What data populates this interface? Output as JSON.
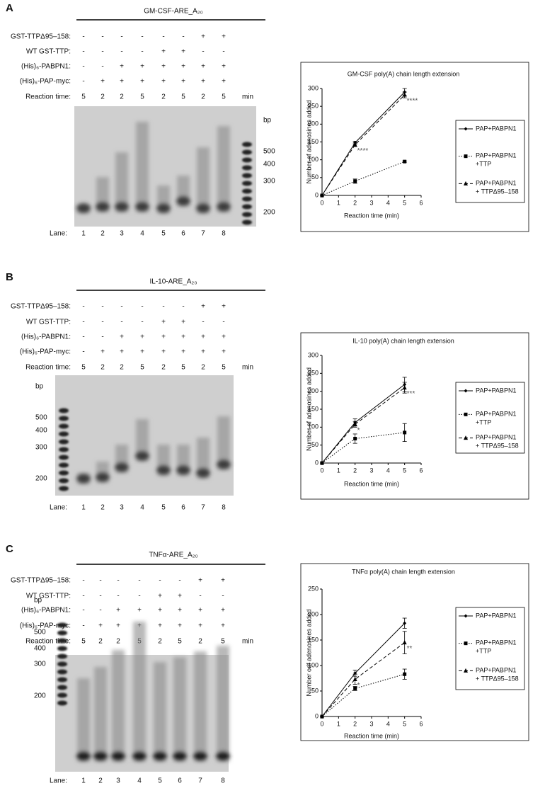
{
  "panels": [
    {
      "label": "A",
      "construct": "GM-CSF-ARE_A₂₀",
      "rows": [
        {
          "name": "GST-TTPΔ95–158:",
          "cells": [
            "-",
            "-",
            "-",
            "-",
            "-",
            "-",
            "+",
            "+"
          ]
        },
        {
          "name": "WT GST-TTP:",
          "cells": [
            "-",
            "-",
            "-",
            "-",
            "+",
            "+",
            "-",
            "-"
          ]
        },
        {
          "name": "(His)₆-PABPN1:",
          "cells": [
            "-",
            "-",
            "+",
            "+",
            "+",
            "+",
            "+",
            "+"
          ]
        },
        {
          "name": "(His)₆-PAP-myc:",
          "cells": [
            "-",
            "+",
            "+",
            "+",
            "+",
            "+",
            "+",
            "+"
          ]
        }
      ],
      "time_label": "Reaction time:",
      "times": [
        5,
        2,
        2,
        5,
        2,
        5,
        2,
        5
      ],
      "time_unit": "min",
      "bp_label": "bp",
      "markers": [
        500,
        400,
        300,
        200
      ],
      "lane_label": "Lane:",
      "lanes": [
        1,
        2,
        3,
        4,
        5,
        6,
        7,
        8
      ]
    },
    {
      "label": "B",
      "construct": "IL-10-ARE_A₂₀",
      "rows": [
        {
          "name": "GST-TTPΔ95–158:",
          "cells": [
            "-",
            "-",
            "-",
            "-",
            "-",
            "-",
            "+",
            "+"
          ]
        },
        {
          "name": "WT GST-TTP:",
          "cells": [
            "-",
            "-",
            "-",
            "-",
            "+",
            "+",
            "-",
            "-"
          ]
        },
        {
          "name": "(His)₆-PABPN1:",
          "cells": [
            "-",
            "-",
            "+",
            "+",
            "+",
            "+",
            "+",
            "+"
          ]
        },
        {
          "name": "(His)₆-PAP-myc:",
          "cells": [
            "-",
            "+",
            "+",
            "+",
            "+",
            "+",
            "+",
            "+"
          ]
        }
      ],
      "time_label": "Reaction time:",
      "times": [
        5,
        2,
        2,
        5,
        2,
        5,
        2,
        5
      ],
      "time_unit": "min",
      "bp_label": "bp",
      "markers": [
        500,
        400,
        300,
        200
      ],
      "lane_label": "Lane:",
      "lanes": [
        1,
        2,
        3,
        4,
        5,
        6,
        7,
        8
      ]
    },
    {
      "label": "C",
      "construct": "TNFα-ARE_A₂₀",
      "rows": [
        {
          "name": "GST-TTPΔ95–158:",
          "cells": [
            "-",
            "-",
            "-",
            "-",
            "-",
            "-",
            "+",
            "+"
          ]
        },
        {
          "name": "WT GST-TTP:",
          "cells": [
            "-",
            "-",
            "-",
            "-",
            "+",
            "+",
            "-",
            "-"
          ]
        },
        {
          "name": "(His)₆-PABPN1:",
          "cells": [
            "-",
            "-",
            "+",
            "+",
            "+",
            "+",
            "+",
            "+"
          ]
        },
        {
          "name": "(His)₆-PAP-myc:",
          "cells": [
            "-",
            "+",
            "+",
            "+",
            "+",
            "+",
            "+",
            "+"
          ]
        }
      ],
      "time_label": "Reaction time:",
      "times": [
        5,
        2,
        2,
        5,
        2,
        5,
        2,
        5
      ],
      "time_unit": "min",
      "bp_label": "bp",
      "markers": [
        500,
        400,
        300,
        200
      ],
      "lane_label": "Lane:",
      "lanes": [
        1,
        2,
        3,
        4,
        5,
        6,
        7,
        8
      ]
    }
  ],
  "chart_data": [
    {
      "type": "line",
      "title": "GM-CSF poly(A) chain length extension",
      "x_label": "Reaction time (min)",
      "y_label": "Number of adenosines added",
      "x": [
        0,
        2,
        5
      ],
      "xlim": [
        0,
        6
      ],
      "xticks": [
        0,
        1,
        2,
        3,
        4,
        5,
        6
      ],
      "ylim": [
        0,
        300
      ],
      "yticks": [
        0,
        50,
        100,
        150,
        200,
        250,
        300
      ],
      "series": [
        {
          "name": "PAP+PABPN1",
          "color": "#000000",
          "dash": "solid",
          "marker": "diamond",
          "values": [
            0,
            148,
            290
          ],
          "errors": [
            0,
            4,
            10
          ]
        },
        {
          "name": "PAP+PABPN1 +TTP",
          "color": "#000000",
          "dash": "dotted",
          "marker": "square",
          "values": [
            0,
            40,
            95
          ],
          "errors": [
            0,
            6,
            2
          ]
        },
        {
          "name": "PAP+PABPN1 + TTPΔ95–158",
          "color": "#000000",
          "dash": "dashed",
          "marker": "triangle",
          "values": [
            0,
            142,
            282
          ],
          "errors": [
            0,
            5,
            8
          ],
          "significance": [
            null,
            "****",
            "****"
          ]
        }
      ]
    },
    {
      "type": "line",
      "title": "IL-10 poly(A) chain length extension",
      "x_label": "Reaction time (min)",
      "y_label": "Number of adenosines added",
      "x": [
        0,
        2,
        5
      ],
      "xlim": [
        0,
        6
      ],
      "xticks": [
        0,
        1,
        2,
        3,
        4,
        5,
        6
      ],
      "ylim": [
        0,
        300
      ],
      "yticks": [
        0,
        50,
        100,
        150,
        200,
        250,
        300
      ],
      "series": [
        {
          "name": "PAP+PABPN1",
          "color": "#000000",
          "dash": "solid",
          "marker": "diamond",
          "values": [
            0,
            113,
            219
          ],
          "errors": [
            0,
            10,
            20
          ]
        },
        {
          "name": "PAP+PABPN1 +TTP",
          "color": "#000000",
          "dash": "dotted",
          "marker": "square",
          "values": [
            0,
            68,
            85
          ],
          "errors": [
            0,
            13,
            25
          ]
        },
        {
          "name": "PAP+PABPN1 + TTPΔ95–158",
          "color": "#000000",
          "dash": "dashed",
          "marker": "triangle",
          "values": [
            0,
            108,
            210
          ],
          "errors": [
            0,
            8,
            15
          ],
          "significance": [
            null,
            "*",
            "***"
          ]
        }
      ]
    },
    {
      "type": "line",
      "title": "TNFα poly(A) chain length extension",
      "x_label": "Reaction time (min)",
      "y_label": "Number odf adenosines added",
      "x": [
        0,
        2,
        5
      ],
      "xlim": [
        0,
        6
      ],
      "xticks": [
        0,
        1,
        2,
        3,
        4,
        5,
        6
      ],
      "ylim": [
        0,
        250
      ],
      "yticks": [
        0,
        50,
        100,
        150,
        200,
        250
      ],
      "series": [
        {
          "name": "PAP+PABPN1",
          "color": "#000000",
          "dash": "solid",
          "marker": "diamond",
          "values": [
            0,
            85,
            183
          ],
          "errors": [
            0,
            6,
            10
          ]
        },
        {
          "name": "PAP+PABPN1 +TTP",
          "color": "#000000",
          "dash": "dotted",
          "marker": "square",
          "values": [
            0,
            55,
            83
          ],
          "errors": [
            0,
            4,
            10
          ]
        },
        {
          "name": "PAP+PABPN1 + TTPΔ95–158",
          "color": "#000000",
          "dash": "dashed",
          "marker": "triangle",
          "values": [
            0,
            73,
            145
          ],
          "errors": [
            0,
            10,
            22
          ],
          "significance": [
            null,
            "*",
            "**"
          ]
        }
      ]
    }
  ]
}
